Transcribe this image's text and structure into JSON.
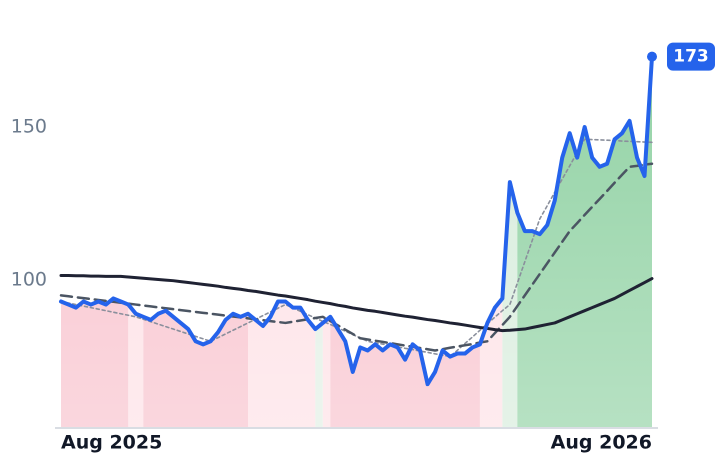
{
  "chart_data": {
    "type": "line",
    "categories": [
      "Aug 2025",
      null,
      null,
      null,
      null,
      null,
      null,
      null,
      null,
      null,
      null,
      null,
      null,
      null,
      null,
      null,
      null,
      null,
      null,
      null,
      null,
      null,
      null,
      null,
      null,
      null,
      null,
      null,
      null,
      null,
      null,
      null,
      null,
      null,
      null,
      null,
      null,
      null,
      null,
      null,
      null,
      null,
      null,
      null,
      null,
      null,
      null,
      null,
      null,
      null,
      null,
      null,
      null,
      null,
      null,
      null,
      null,
      null,
      null,
      null,
      null,
      null,
      null,
      null,
      null,
      null,
      null,
      null,
      null,
      null,
      null,
      null,
      null,
      null,
      null,
      null,
      null,
      null,
      null,
      "Aug 2026"
    ],
    "series": [
      {
        "color": "#2563eb",
        "style": "solid",
        "width": 4,
        "values": [
          93,
          92,
          91,
          93,
          92,
          93,
          92,
          94,
          93,
          92,
          89,
          88,
          87,
          89,
          90,
          88,
          86,
          84,
          80,
          79,
          80,
          83,
          87,
          89,
          88,
          89,
          87,
          85,
          88,
          93,
          93,
          91,
          91,
          87,
          84,
          86,
          88,
          84,
          80,
          70,
          78,
          77,
          79,
          77,
          79,
          78,
          74,
          79,
          77,
          66,
          70,
          77,
          75,
          76,
          76,
          78,
          79,
          86,
          91,
          94,
          132,
          122,
          116,
          116,
          115,
          118,
          126,
          140,
          148,
          140,
          150,
          140,
          137,
          138,
          146,
          148,
          152,
          140,
          134,
          173
        ]
      },
      {
        "color": "#1f2233",
        "style": "solid",
        "width": 3,
        "values": [
          101.5,
          101.5,
          101.4,
          101.4,
          101.3,
          101.3,
          101.2,
          101.2,
          101.2,
          101,
          100.8,
          100.6,
          100.4,
          100.2,
          100,
          99.8,
          99.5,
          99.2,
          98.9,
          98.6,
          98.3,
          98,
          97.6,
          97.3,
          97,
          96.6,
          96.3,
          95.9,
          95.5,
          95.1,
          94.8,
          94.4,
          94,
          93.6,
          93.1,
          92.7,
          92.3,
          91.8,
          91.4,
          90.9,
          90.5,
          90.1,
          89.8,
          89.4,
          89,
          88.6,
          88.2,
          87.9,
          87.5,
          87.1,
          86.8,
          86.4,
          86,
          85.7,
          85.3,
          84.9,
          84.5,
          84.2,
          83.8,
          83.5,
          83.6,
          83.8,
          84,
          84.5,
          85,
          85.5,
          86,
          87,
          88,
          89,
          90,
          91,
          92,
          93,
          94,
          95.3,
          96.6,
          97.9,
          99.2,
          100.5
        ]
      },
      {
        "color": "#4b5563",
        "style": "dashed",
        "width": 2.5,
        "values": [
          95,
          94.7,
          94.4,
          94.1,
          93.8,
          93.5,
          93.2,
          92.9,
          92.6,
          92.3,
          92,
          91.7,
          91.4,
          91.1,
          90.8,
          90.5,
          90.2,
          89.9,
          89.6,
          89.3,
          89,
          88.7,
          88.4,
          88.1,
          87.8,
          87.5,
          87.2,
          86.9,
          86.6,
          86.3,
          86,
          86.4,
          86.8,
          87.2,
          87.6,
          88,
          86.6,
          85.2,
          83.8,
          82.4,
          81,
          80.6,
          80.2,
          79.8,
          79.4,
          79,
          78.6,
          78.2,
          77.8,
          77.4,
          77,
          77.4,
          77.9,
          78.3,
          78.7,
          79.1,
          79.6,
          80,
          82.7,
          85.3,
          88,
          91.5,
          95,
          98.5,
          102,
          105.5,
          109,
          112.5,
          116,
          118.6,
          121.3,
          123.9,
          126.5,
          129.1,
          131.8,
          134.4,
          137,
          137.3,
          137.7,
          138
        ]
      },
      {
        "color": "#8a8f9c",
        "style": "dotted",
        "width": 1.6,
        "values": [
          93,
          92.5,
          92,
          91.5,
          91,
          90.5,
          90,
          89.5,
          89,
          88.5,
          88,
          87.2,
          86.4,
          85.6,
          84.8,
          84,
          83.2,
          82.4,
          81.6,
          80.8,
          80,
          81.2,
          82.4,
          83.6,
          84.8,
          86,
          87.2,
          88.4,
          89.6,
          90.8,
          92,
          90.9,
          89.8,
          88.7,
          87.6,
          86.5,
          85.5,
          84.4,
          83.3,
          82.2,
          81.1,
          80,
          79.5,
          79.1,
          78.6,
          78.2,
          77.7,
          77.3,
          76.8,
          76.4,
          75.9,
          75.5,
          75,
          77.1,
          79.3,
          81.4,
          83.6,
          85.7,
          87.9,
          90,
          92,
          99,
          106,
          113,
          120,
          124.3,
          128.7,
          133,
          137.3,
          141.7,
          146,
          145.9,
          145.8,
          145.7,
          145.6,
          145.4,
          145.3,
          145.2,
          145.1,
          145
        ]
      }
    ],
    "regions": [
      {
        "from": 0,
        "to": 9,
        "color": "#f8c1cc"
      },
      {
        "from": 9,
        "to": 11,
        "color": "#fde0e5"
      },
      {
        "from": 11,
        "to": 25,
        "color": "#f8c1cc"
      },
      {
        "from": 25,
        "to": 34,
        "color": "#fde0e5"
      },
      {
        "from": 34,
        "to": 35,
        "color": "#e1efe4"
      },
      {
        "from": 35,
        "to": 36,
        "color": "#fde0e5"
      },
      {
        "from": 36,
        "to": 56,
        "color": "#f8c1cc"
      },
      {
        "from": 56,
        "to": 59,
        "color": "#fde0e5"
      },
      {
        "from": 59,
        "to": 61,
        "color": "#d6ecdb"
      },
      {
        "from": 61,
        "to": 79,
        "color": "#8fd1a2"
      }
    ],
    "ylim": [
      52,
      191.5
    ],
    "yticks": [
      100,
      150
    ],
    "grid": false
  }
}
